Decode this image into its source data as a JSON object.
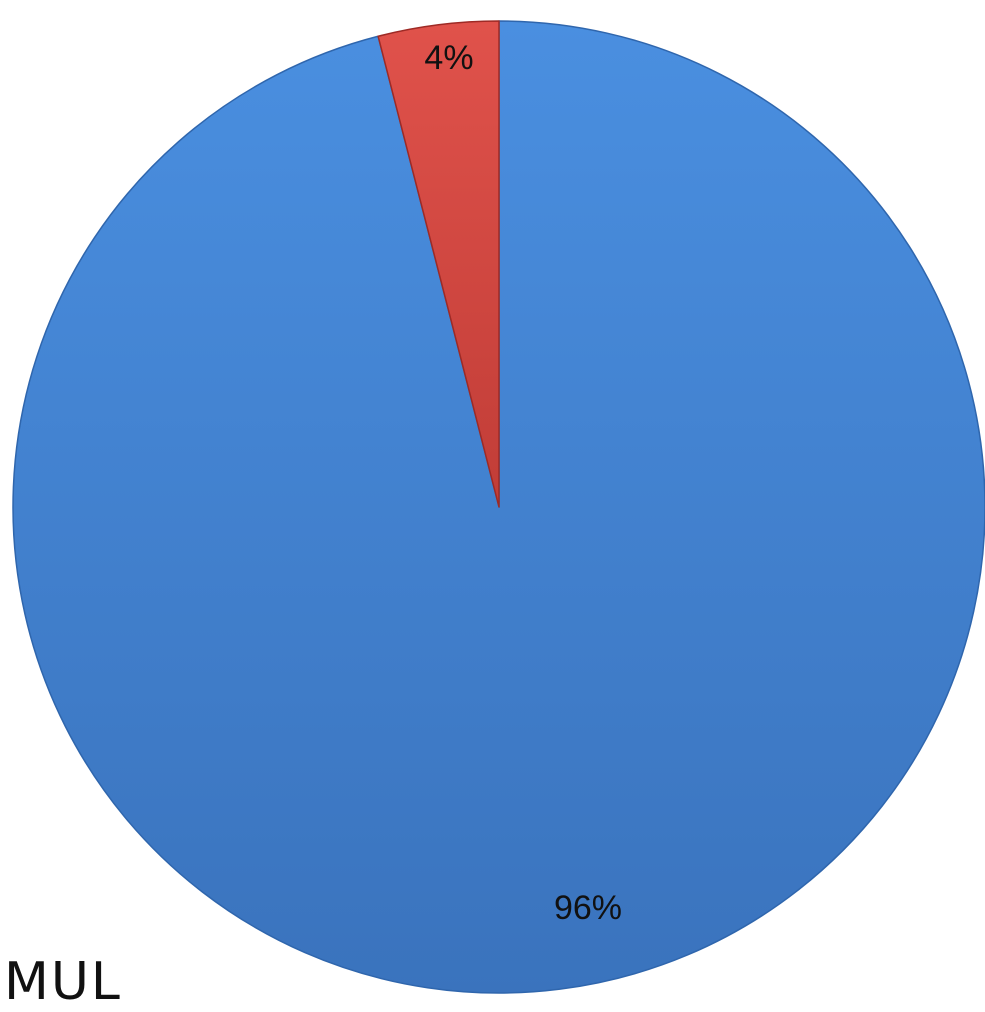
{
  "chart_data": {
    "type": "pie",
    "title": "",
    "start_angle_deg": 0,
    "direction": "clockwise",
    "slices": [
      {
        "label": "96%",
        "value": 96,
        "color": "#4384d6",
        "edge": "#2f66ad"
      },
      {
        "label": "4%",
        "value": 4,
        "color": "#d94841",
        "edge": "#9e2a25"
      }
    ],
    "legend": "none"
  },
  "overlay_text": "MUL"
}
